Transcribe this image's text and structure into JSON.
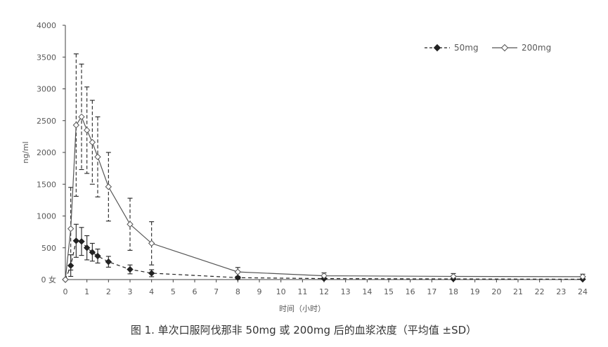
{
  "chart_data": {
    "type": "line",
    "title": "图 1. 单次口服阿伐那非 50mg 或 200mg 后的血浆浓度（平均值 ±SD）",
    "xlabel": "时间（小时）",
    "ylabel": "ng/ml",
    "xlim": [
      0,
      24
    ],
    "ylim": [
      0,
      4000
    ],
    "xticks": [
      0,
      1,
      2,
      3,
      4,
      5,
      6,
      7,
      8,
      9,
      10,
      11,
      12,
      13,
      14,
      15,
      16,
      17,
      18,
      19,
      20,
      21,
      22,
      23,
      24
    ],
    "yticks": [
      0,
      500,
      1000,
      1500,
      2000,
      2500,
      3000,
      3500,
      4000
    ],
    "ytick_labels": [
      "0 女",
      "500",
      "1000",
      "1500",
      "2000",
      "2500",
      "3000",
      "3500",
      "4000"
    ],
    "grid": false,
    "legend_position": "top-right",
    "error_bars": "±SD",
    "series": [
      {
        "name": "50mg",
        "line_style": "dashed",
        "marker": "filled-diamond",
        "x": [
          0,
          0.25,
          0.5,
          0.75,
          1,
          1.25,
          1.5,
          2,
          3,
          4,
          8,
          12,
          18,
          24
        ],
        "y": [
          0,
          220,
          610,
          600,
          500,
          430,
          370,
          280,
          160,
          100,
          30,
          15,
          10,
          5
        ],
        "sd": [
          0,
          170,
          260,
          220,
          190,
          140,
          110,
          85,
          70,
          55,
          20,
          10,
          8,
          5
        ]
      },
      {
        "name": "200mg",
        "line_style": "solid",
        "marker": "open-diamond",
        "x": [
          0,
          0.25,
          0.5,
          0.75,
          1,
          1.25,
          1.5,
          2,
          3,
          4,
          8,
          12,
          18,
          24
        ],
        "y": [
          0,
          800,
          2430,
          2560,
          2350,
          2160,
          1930,
          1460,
          870,
          570,
          120,
          60,
          50,
          45
        ],
        "sd": [
          0,
          650,
          1120,
          830,
          680,
          660,
          630,
          540,
          410,
          340,
          70,
          45,
          45,
          40
        ]
      }
    ]
  },
  "colors": {
    "axis": "#404040",
    "series_50mg": "#222222",
    "series_200mg": "#555555",
    "error_bar": "#222222",
    "text": "#595959"
  }
}
